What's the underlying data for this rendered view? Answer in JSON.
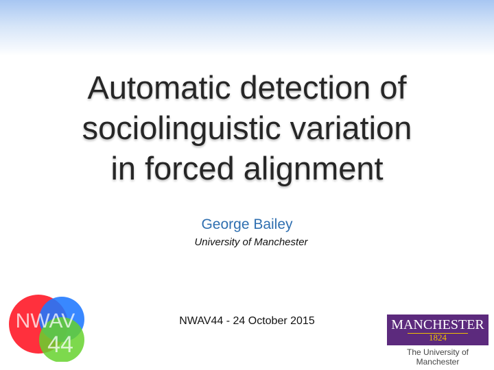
{
  "slide": {
    "title_lines": [
      "Automatic detection of",
      "sociolinguistic variation",
      "in forced alignment"
    ],
    "author": "George Bailey",
    "affiliation": "University of Manchester",
    "event": "NWAV44 - 24 October 2015"
  },
  "logos": {
    "nwav": {
      "text_top": "NWAV",
      "text_bottom": "44",
      "colors": {
        "red": "#ff1e2d",
        "blue": "#1e78ff",
        "green": "#66d22e"
      }
    },
    "manchester": {
      "wordmark": "MANCHESTER",
      "year": "1824",
      "subtitle": "The University of Manchester",
      "colors": {
        "purple": "#5c2a7d",
        "gold": "#f2c200"
      }
    }
  }
}
